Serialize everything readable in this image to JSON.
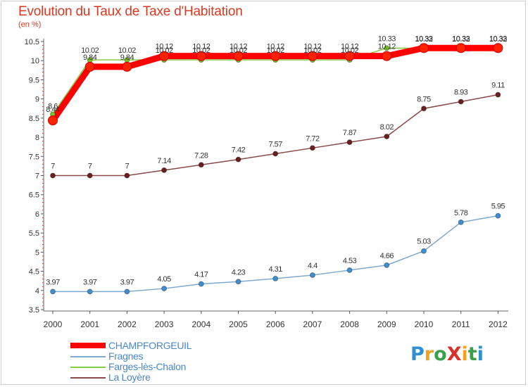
{
  "title": "Evolution du Taux de Taxe d'Habitation",
  "unit": "(en %)",
  "logo": {
    "text": "ProXiti",
    "colors": [
      "#2f8fd0",
      "#f2a21c",
      "#3aa04a",
      "#d9302b",
      "#f2a21c",
      "#3aa04a",
      "#2f8fd0"
    ]
  },
  "chart_data": {
    "type": "line",
    "x": [
      "2000",
      "2001",
      "2002",
      "2003",
      "2004",
      "2005",
      "2006",
      "2007",
      "2008",
      "2009",
      "2010",
      "2011",
      "2012"
    ],
    "yticks": [
      "3.5",
      "4",
      "4.5",
      "5",
      "5.5",
      "6",
      "6.5",
      "7",
      "7.5",
      "8",
      "8.5",
      "9",
      "9.5",
      "10",
      "10.5"
    ],
    "ylim": [
      3.5,
      10.5
    ],
    "grid": false,
    "legend_position": "bottom-left",
    "series": [
      {
        "name": "CHAMPFORGEUIL",
        "color": "#ff0000",
        "point_color": "#ff2200",
        "values": [
          8.44,
          9.84,
          9.84,
          10.12,
          10.12,
          10.12,
          10.12,
          10.12,
          10.12,
          10.12,
          10.33,
          10.33,
          10.33
        ],
        "labels": [
          "8.44",
          "9.84",
          "9.84",
          "10.12",
          "10.12",
          "10.12",
          "10.12",
          "10.12",
          "10.12",
          "10.12",
          "10.33",
          "10.33",
          "10.33"
        ]
      },
      {
        "name": "Fragnes",
        "color": "#7ea9d0",
        "point_color": "#3f8fd0",
        "values": [
          3.97,
          3.97,
          3.97,
          4.05,
          4.17,
          4.23,
          4.31,
          4.4,
          4.53,
          4.66,
          5.03,
          5.78,
          5.95
        ],
        "labels": [
          "3.97",
          "3.97",
          "3.97",
          "4.05",
          "4.17",
          "4.23",
          "4.31",
          "4.4",
          "4.53",
          "4.66",
          "5.03",
          "5.78",
          "5.95"
        ]
      },
      {
        "name": "Farges-lès-Chalon",
        "color": "#88cc44",
        "point_color": "#7ac520",
        "values": [
          8.6,
          10.02,
          10.02,
          10.02,
          10.02,
          10.02,
          10.02,
          10.02,
          10.02,
          10.33,
          10.32,
          10.32,
          10.32
        ],
        "labels": [
          "8.6",
          "10.02",
          "10.02",
          "10.02",
          "10.02",
          "10.02",
          "10.02",
          "10.02",
          "10.02",
          "10.33",
          "10.32",
          "10.32",
          "10.32"
        ]
      },
      {
        "name": "La Loyère",
        "color": "#8a4a4a",
        "point_color": "#6b1f1f",
        "values": [
          7,
          7,
          7,
          7.14,
          7.28,
          7.42,
          7.57,
          7.72,
          7.87,
          8.02,
          8.75,
          8.93,
          9.11
        ],
        "labels": [
          "7",
          "7",
          "7",
          "7.14",
          "7.28",
          "7.42",
          "7.57",
          "7.72",
          "7.87",
          "8.02",
          "8.75",
          "8.93",
          "9.11"
        ]
      }
    ]
  }
}
